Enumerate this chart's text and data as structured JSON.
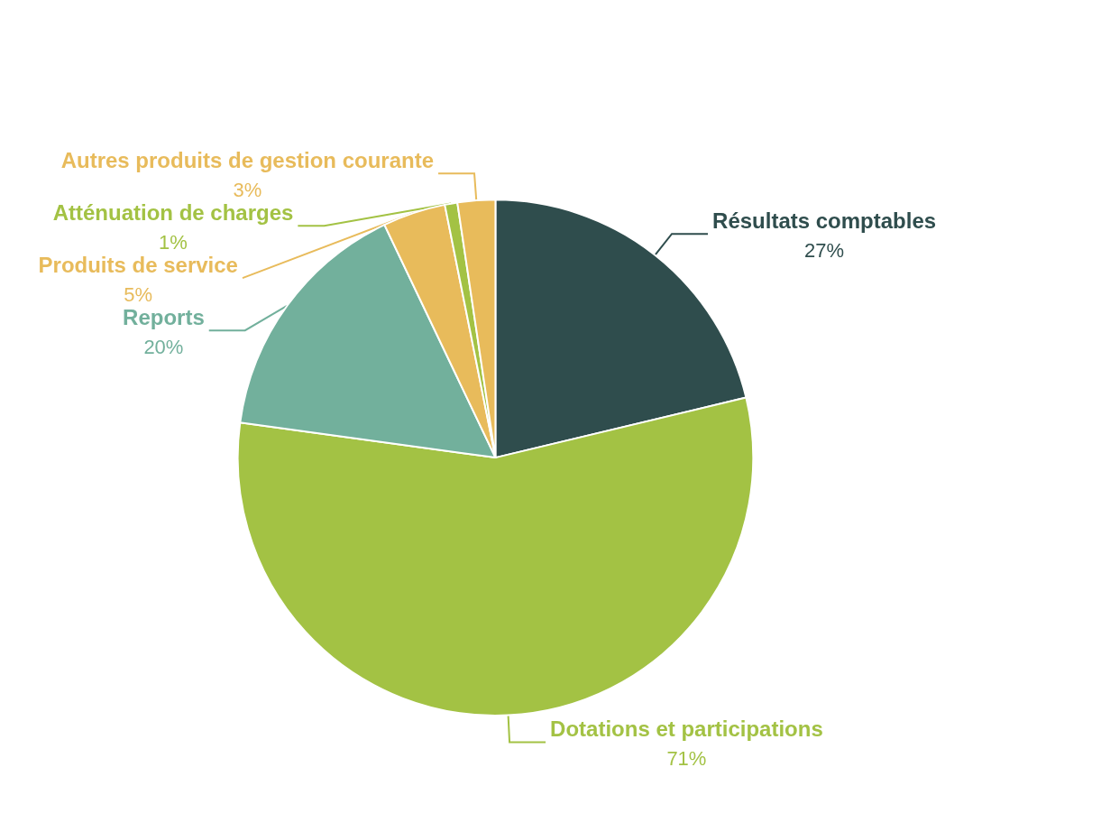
{
  "chart_data": {
    "type": "pie",
    "categories": [
      "Résultats comptables",
      "Dotations et participations",
      "Reports",
      "Produits de service",
      "Atténuation de charges",
      "Autres produits de gestion courante"
    ],
    "values": [
      27,
      71,
      20,
      5,
      1,
      3
    ],
    "value_labels": [
      "27%",
      "71%",
      "20%",
      "5%",
      "1%",
      "3%"
    ],
    "colors": [
      "#2f4d4d",
      "#a3c244",
      "#72b09c",
      "#e8bb5b",
      "#a3c244",
      "#e8bb5b"
    ]
  }
}
